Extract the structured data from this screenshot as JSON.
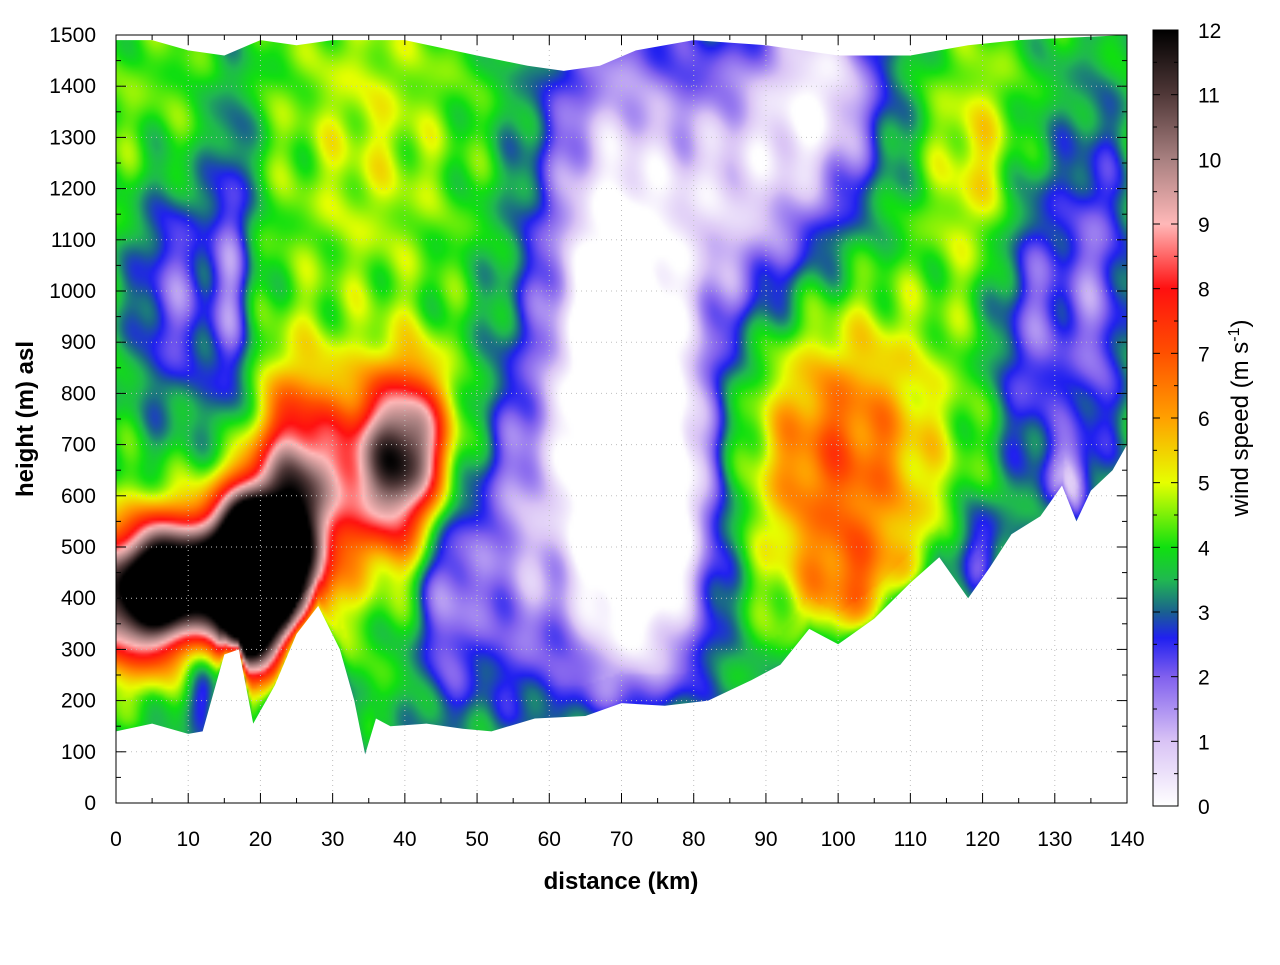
{
  "chart_data": {
    "type": "heatmap",
    "title": "",
    "xlabel": "distance (km)",
    "ylabel": "height (m) asl",
    "xlim": [
      0,
      140
    ],
    "ylim": [
      0,
      1500
    ],
    "x_ticks": [
      "0",
      "10",
      "20",
      "30",
      "40",
      "50",
      "60",
      "70",
      "80",
      "90",
      "100",
      "110",
      "120",
      "130",
      "140"
    ],
    "y_ticks": [
      "0",
      "100",
      "200",
      "300",
      "400",
      "500",
      "600",
      "700",
      "800",
      "900",
      "1000",
      "1100",
      "1200",
      "1300",
      "1400",
      "1500"
    ],
    "grid": true,
    "colorbar": {
      "label_main": "wind speed (m s",
      "label_sup": "-1",
      "label_end": ")",
      "range": [
        0,
        12
      ],
      "ticks": [
        "0",
        "1",
        "2",
        "3",
        "4",
        "5",
        "6",
        "7",
        "8",
        "9",
        "10",
        "11",
        "12"
      ],
      "colors": [
        {
          "v": 0,
          "c": "#ffffff"
        },
        {
          "v": 1,
          "c": "#d9c3f5"
        },
        {
          "v": 2,
          "c": "#8060ee"
        },
        {
          "v": 2.6,
          "c": "#2020f0"
        },
        {
          "v": 3,
          "c": "#1a6090"
        },
        {
          "v": 3.5,
          "c": "#20b850"
        },
        {
          "v": 4,
          "c": "#10e010"
        },
        {
          "v": 5,
          "c": "#e6ff00"
        },
        {
          "v": 6,
          "c": "#ffa000"
        },
        {
          "v": 7,
          "c": "#ff5000"
        },
        {
          "v": 8,
          "c": "#ff1010"
        },
        {
          "v": 9,
          "c": "#ffb8b8"
        },
        {
          "v": 10,
          "c": "#a88080"
        },
        {
          "v": 11,
          "c": "#503838"
        },
        {
          "v": 12,
          "c": "#000000"
        }
      ]
    },
    "terrain_bottom_m": [
      {
        "x": 0,
        "y": 140
      },
      {
        "x": 5,
        "y": 155
      },
      {
        "x": 10,
        "y": 135
      },
      {
        "x": 12,
        "y": 140
      },
      {
        "x": 15,
        "y": 290
      },
      {
        "x": 17,
        "y": 300
      },
      {
        "x": 19,
        "y": 155
      },
      {
        "x": 22,
        "y": 230
      },
      {
        "x": 25,
        "y": 330
      },
      {
        "x": 28,
        "y": 385
      },
      {
        "x": 31,
        "y": 300
      },
      {
        "x": 33,
        "y": 200
      },
      {
        "x": 34.5,
        "y": 95
      },
      {
        "x": 36,
        "y": 165
      },
      {
        "x": 38,
        "y": 150
      },
      {
        "x": 43,
        "y": 155
      },
      {
        "x": 48,
        "y": 145
      },
      {
        "x": 52,
        "y": 140
      },
      {
        "x": 58,
        "y": 165
      },
      {
        "x": 65,
        "y": 170
      },
      {
        "x": 70,
        "y": 195
      },
      {
        "x": 76,
        "y": 190
      },
      {
        "x": 82,
        "y": 200
      },
      {
        "x": 88,
        "y": 240
      },
      {
        "x": 92,
        "y": 270
      },
      {
        "x": 96,
        "y": 340
      },
      {
        "x": 100,
        "y": 310
      },
      {
        "x": 105,
        "y": 360
      },
      {
        "x": 110,
        "y": 430
      },
      {
        "x": 114,
        "y": 480
      },
      {
        "x": 118,
        "y": 400
      },
      {
        "x": 121,
        "y": 460
      },
      {
        "x": 124,
        "y": 525
      },
      {
        "x": 128,
        "y": 560
      },
      {
        "x": 131,
        "y": 620
      },
      {
        "x": 133,
        "y": 550
      },
      {
        "x": 135,
        "y": 610
      },
      {
        "x": 138,
        "y": 650
      },
      {
        "x": 140,
        "y": 700
      }
    ],
    "data_top_m": [
      {
        "x": 0,
        "y": 1490
      },
      {
        "x": 5,
        "y": 1490
      },
      {
        "x": 10,
        "y": 1470
      },
      {
        "x": 15,
        "y": 1460
      },
      {
        "x": 20,
        "y": 1490
      },
      {
        "x": 25,
        "y": 1480
      },
      {
        "x": 30,
        "y": 1490
      },
      {
        "x": 40,
        "y": 1490
      },
      {
        "x": 50,
        "y": 1460
      },
      {
        "x": 57,
        "y": 1440
      },
      {
        "x": 62,
        "y": 1430
      },
      {
        "x": 67,
        "y": 1440
      },
      {
        "x": 72,
        "y": 1470
      },
      {
        "x": 80,
        "y": 1490
      },
      {
        "x": 90,
        "y": 1480
      },
      {
        "x": 100,
        "y": 1460
      },
      {
        "x": 110,
        "y": 1460
      },
      {
        "x": 118,
        "y": 1480
      },
      {
        "x": 125,
        "y": 1490
      },
      {
        "x": 140,
        "y": 1500
      }
    ],
    "wind_speed_features": [
      {
        "x": 3,
        "y": 400,
        "sx": 6,
        "sy": 90,
        "v": 7.5
      },
      {
        "x": 9,
        "y": 450,
        "sx": 5,
        "sy": 80,
        "v": 6.5
      },
      {
        "x": 17,
        "y": 450,
        "sx": 3,
        "sy": 110,
        "v": 10
      },
      {
        "x": 19,
        "y": 420,
        "sx": 2.5,
        "sy": 100,
        "v": 9
      },
      {
        "x": 25,
        "y": 560,
        "sx": 4,
        "sy": 170,
        "v": 7
      },
      {
        "x": 23,
        "y": 450,
        "sx": 3,
        "sy": 100,
        "v": 4
      },
      {
        "x": 37,
        "y": 650,
        "sx": 5,
        "sy": 120,
        "v": 5.5
      },
      {
        "x": 42,
        "y": 700,
        "sx": 4,
        "sy": 110,
        "v": 4
      },
      {
        "x": 16,
        "y": 1050,
        "sx": 2,
        "sy": 260,
        "v": -2
      },
      {
        "x": 12,
        "y": 230,
        "sx": 2,
        "sy": 60,
        "v": -2
      },
      {
        "x": 8,
        "y": 1000,
        "sx": 4,
        "sy": 160,
        "v": -2
      },
      {
        "x": 46,
        "y": 450,
        "sx": 3,
        "sy": 200,
        "v": -2.5
      },
      {
        "x": 55,
        "y": 480,
        "sx": 4,
        "sy": 220,
        "v": -2
      },
      {
        "x": 68,
        "y": 900,
        "sx": 7,
        "sy": 450,
        "v": -4
      },
      {
        "x": 74,
        "y": 600,
        "sx": 7,
        "sy": 250,
        "v": -4.5
      },
      {
        "x": 86,
        "y": 1200,
        "sx": 9,
        "sy": 200,
        "v": -3
      },
      {
        "x": 98,
        "y": 1400,
        "sx": 6,
        "sy": 150,
        "v": -3
      },
      {
        "x": 100,
        "y": 680,
        "sx": 10,
        "sy": 200,
        "v": 3
      },
      {
        "x": 102,
        "y": 420,
        "sx": 5,
        "sy": 80,
        "v": 1.5
      },
      {
        "x": 120,
        "y": 1250,
        "sx": 5,
        "sy": 160,
        "v": 1.5
      },
      {
        "x": 119,
        "y": 480,
        "sx": 2.5,
        "sy": 80,
        "v": -2
      },
      {
        "x": 127,
        "y": 950,
        "sx": 4,
        "sy": 250,
        "v": -2
      },
      {
        "x": 136,
        "y": 1000,
        "sx": 3,
        "sy": 250,
        "v": -2
      },
      {
        "x": 132,
        "y": 620,
        "sx": 2,
        "sy": 60,
        "v": -2.5
      },
      {
        "x": 35,
        "y": 1300,
        "sx": 9,
        "sy": 250,
        "v": 1
      },
      {
        "x": 5,
        "y": 1350,
        "sx": 7,
        "sy": 150,
        "v": 0.5
      }
    ]
  }
}
